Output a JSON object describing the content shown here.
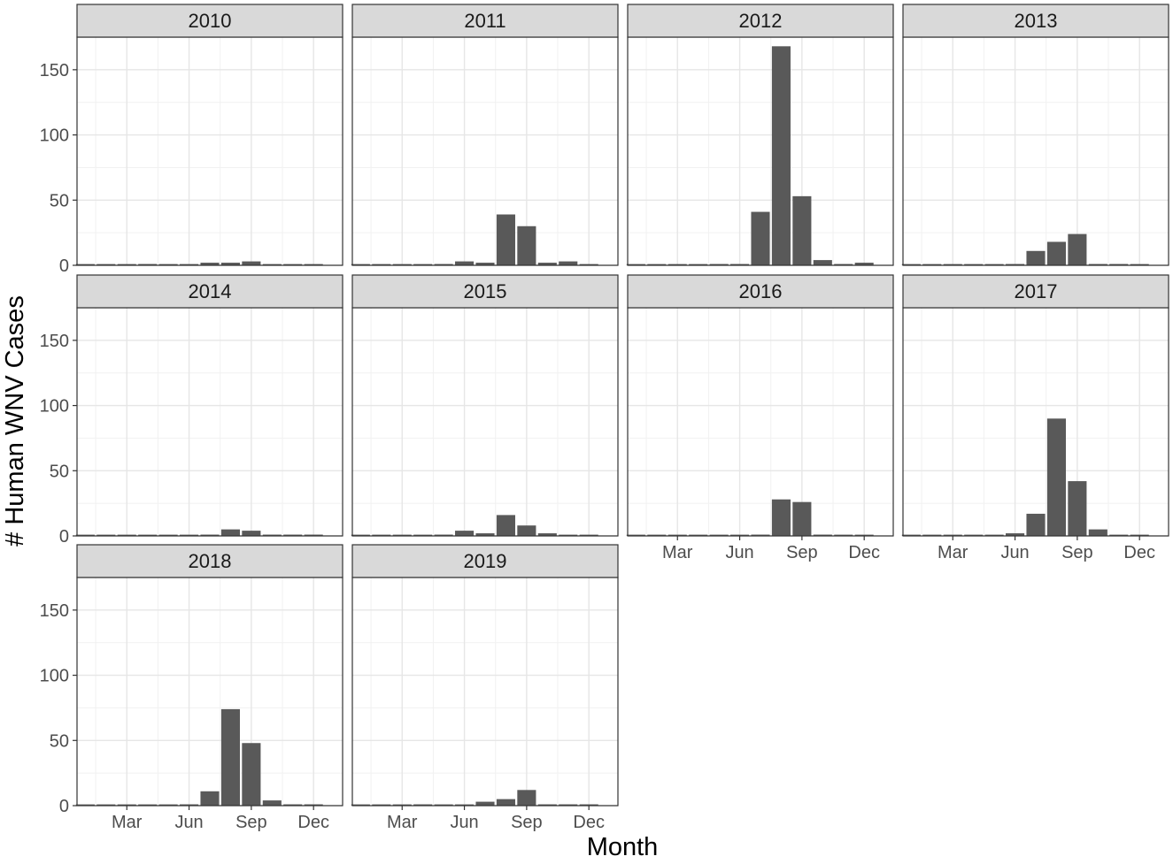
{
  "chart_data": {
    "type": "bar",
    "xlabel": "Month",
    "ylabel": "# Human WNV Cases",
    "ylim": [
      0,
      175
    ],
    "yticks": [
      0,
      50,
      100,
      150
    ],
    "xticks": [
      "Mar",
      "Jun",
      "Sep",
      "Dec"
    ],
    "xtick_month_index": [
      3,
      6,
      9,
      12
    ],
    "grid": true,
    "bar_color": "#595959",
    "strip_fill": "#d9d9d9",
    "months": [
      1,
      2,
      3,
      4,
      5,
      6,
      7,
      8,
      9,
      10,
      11,
      12
    ],
    "facets": [
      {
        "label": "2010",
        "values": [
          0,
          0,
          0,
          1,
          0,
          0,
          2,
          2,
          3,
          0,
          0,
          0
        ]
      },
      {
        "label": "2011",
        "values": [
          0,
          0,
          0,
          0,
          1,
          3,
          2,
          39,
          30,
          2,
          3,
          0
        ]
      },
      {
        "label": "2012",
        "values": [
          0,
          0,
          0,
          0,
          1,
          1,
          41,
          168,
          53,
          4,
          1,
          2
        ]
      },
      {
        "label": "2013",
        "values": [
          0,
          0,
          0,
          0,
          0,
          1,
          11,
          18,
          24,
          1,
          1,
          0
        ]
      },
      {
        "label": "2014",
        "values": [
          0,
          0,
          0,
          0,
          0,
          0,
          1,
          5,
          4,
          1,
          1,
          1
        ]
      },
      {
        "label": "2015",
        "values": [
          0,
          0,
          0,
          0,
          1,
          4,
          2,
          16,
          8,
          2,
          0,
          0
        ]
      },
      {
        "label": "2016",
        "values": [
          0,
          0,
          0,
          0,
          0,
          0,
          1,
          28,
          26,
          1,
          0,
          0
        ]
      },
      {
        "label": "2017",
        "values": [
          0,
          0,
          0,
          0,
          0,
          2,
          17,
          90,
          42,
          5,
          0,
          0
        ]
      },
      {
        "label": "2018",
        "values": [
          0,
          0,
          0,
          0,
          0,
          1,
          11,
          74,
          48,
          4,
          1,
          1
        ]
      },
      {
        "label": "2019",
        "values": [
          0,
          0,
          0,
          1,
          0,
          0,
          3,
          5,
          12,
          1,
          1,
          1
        ]
      }
    ]
  }
}
